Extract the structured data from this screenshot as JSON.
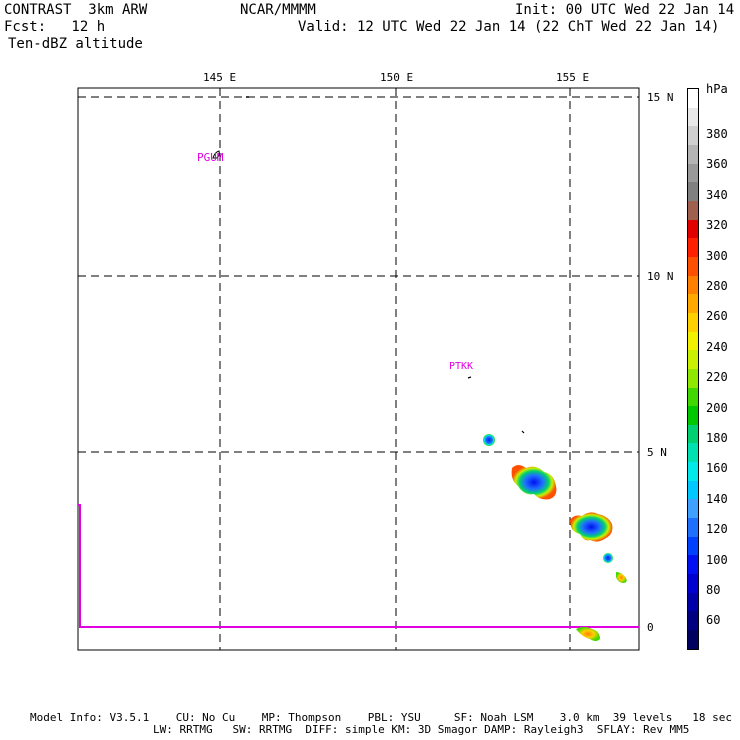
{
  "header": {
    "model": "CONTRAST  3km ARW",
    "org": "NCAR/MMMM",
    "init": "Init: 00 UTC Wed 22 Jan 14",
    "fcst": "Fcst:   12 h",
    "valid": "Valid: 12 UTC Wed 22 Jan 14 (22 ChT Wed 22 Jan 14)",
    "field": "Ten-dBZ altitude"
  },
  "map": {
    "lon_labels": [
      "145 E",
      "150 E",
      "155 E"
    ],
    "lat_labels": [
      "15 N",
      "10 N",
      "5 N",
      "0"
    ],
    "stations": [
      "PGUM",
      "PTKK"
    ]
  },
  "colorbar": {
    "unit": "hPa",
    "labels": [
      "380",
      "360",
      "340",
      "320",
      "300",
      "280",
      "260",
      "240",
      "220",
      "200",
      "180",
      "160",
      "140",
      "120",
      "100",
      "80",
      "60"
    ],
    "colors": [
      "#ffffff",
      "#e8e8e8",
      "#cfcfcf",
      "#b4b4b4",
      "#9a9a9a",
      "#808080",
      "#a06050",
      "#e00000",
      "#ff2000",
      "#ff5000",
      "#ff8000",
      "#ffa800",
      "#ffd000",
      "#f0f000",
      "#c8f000",
      "#90e800",
      "#40d800",
      "#00c800",
      "#00d070",
      "#00e0b0",
      "#00e8e8",
      "#00c8ff",
      "#40a0ff",
      "#2070ff",
      "#0040ff",
      "#0010f0",
      "#0000d0",
      "#0000a8",
      "#000080",
      "#000060"
    ]
  },
  "footer": {
    "line1": "Model Info: V3.5.1    CU: No Cu    MP: Thompson    PBL: YSU     SF: Noah LSM    3.0 km  39 levels   18 sec",
    "line2": "LW: RRTMG   SW: RRTMG  DIFF: simple KM: 3D Smagor DAMP: Rayleigh3  SFLAY: Rev MM5"
  }
}
